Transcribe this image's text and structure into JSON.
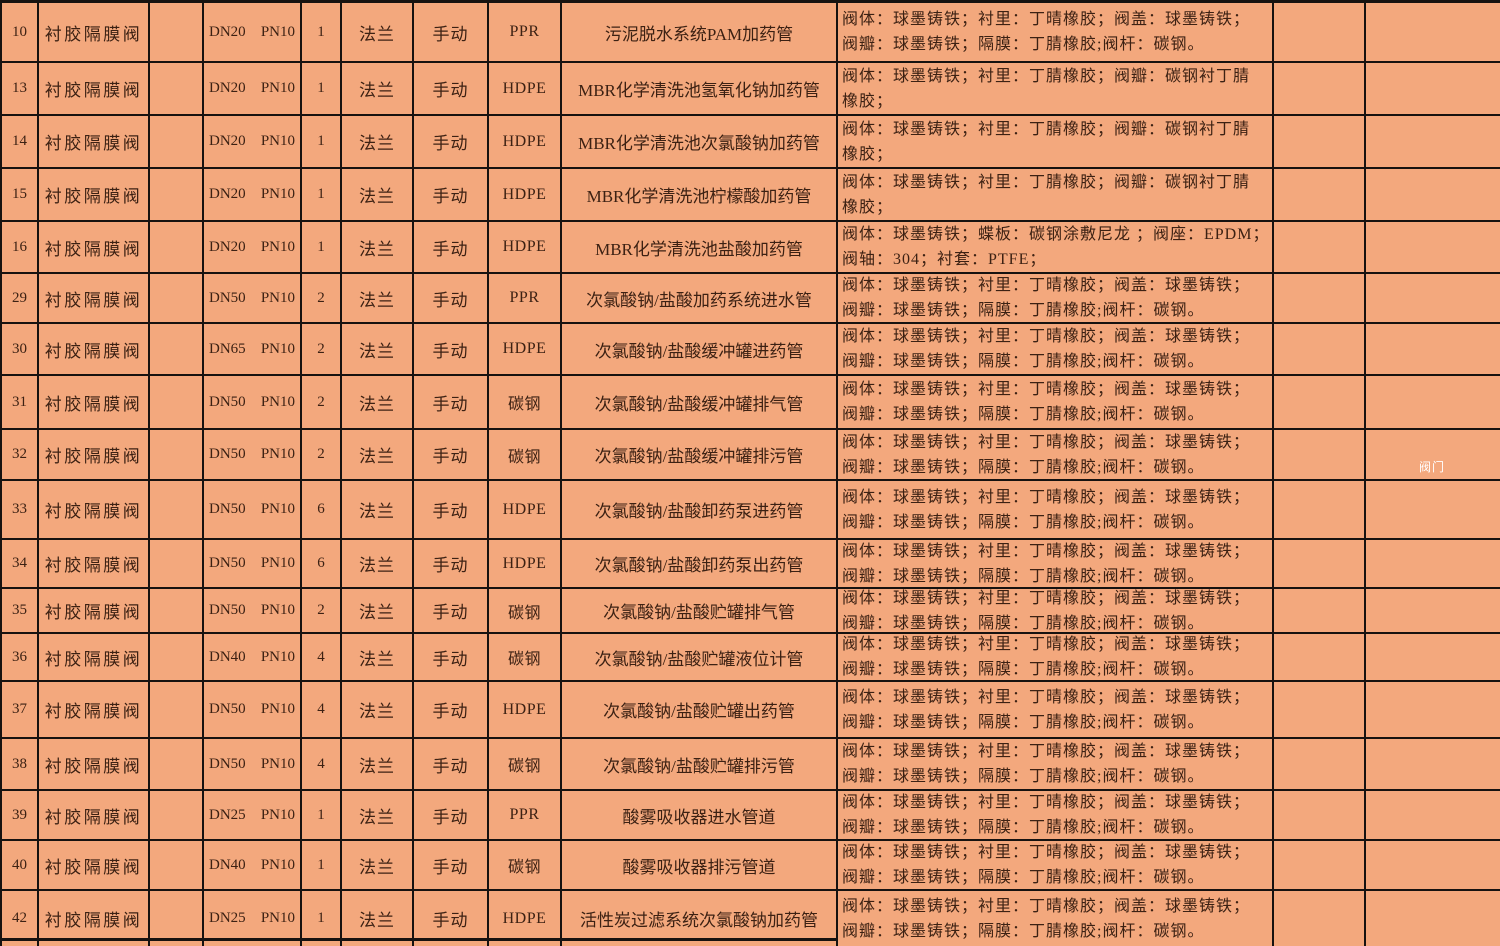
{
  "colors": {
    "cell_fill": "#f3a87d",
    "grid_line": "#161210",
    "text": "#3c2113",
    "watermark_text": "#ffffff"
  },
  "table": {
    "watermark_label": "阀门",
    "rows": [
      {
        "no": "10",
        "name": "衬胶隔膜阀",
        "dn": "DN20",
        "pn": "PN10",
        "qty": "1",
        "connection": "法兰",
        "operation": "手动",
        "material": "PPR",
        "service": "污泥脱水系统PAM加药管",
        "spec_line1": "阀体：球墨铸铁；衬里：丁晴橡胶；阀盖：球墨铸铁；",
        "spec_line2": "阀瓣：球墨铸铁；隔膜：丁腈橡胶;阀杆：碳钢。"
      },
      {
        "no": "13",
        "name": "衬胶隔膜阀",
        "dn": "DN20",
        "pn": "PN10",
        "qty": "1",
        "connection": "法兰",
        "operation": "手动",
        "material": "HDPE",
        "service": "MBR化学清洗池氢氧化钠加药管",
        "spec_line1": "阀体：球墨铸铁；衬里：丁腈橡胶；阀瓣：碳钢衬丁腈",
        "spec_line2": "橡胶；"
      },
      {
        "no": "14",
        "name": "衬胶隔膜阀",
        "dn": "DN20",
        "pn": "PN10",
        "qty": "1",
        "connection": "法兰",
        "operation": "手动",
        "material": "HDPE",
        "service": "MBR化学清洗池次氯酸钠加药管",
        "spec_line1": "阀体：球墨铸铁；衬里：丁腈橡胶；阀瓣：碳钢衬丁腈",
        "spec_line2": "橡胶；"
      },
      {
        "no": "15",
        "name": "衬胶隔膜阀",
        "dn": "DN20",
        "pn": "PN10",
        "qty": "1",
        "connection": "法兰",
        "operation": "手动",
        "material": "HDPE",
        "service": "MBR化学清洗池柠檬酸加药管",
        "spec_line1": "阀体：球墨铸铁；衬里：丁腈橡胶；阀瓣：碳钢衬丁腈",
        "spec_line2": "橡胶；"
      },
      {
        "no": "16",
        "name": "衬胶隔膜阀",
        "dn": "DN20",
        "pn": "PN10",
        "qty": "1",
        "connection": "法兰",
        "operation": "手动",
        "material": "HDPE",
        "service": "MBR化学清洗池盐酸加药管",
        "spec_line1": "阀体：球墨铸铁；蝶板：碳钢涂敷尼龙 ；阀座：EPDM；",
        "spec_line2": "阀轴：304；衬套：PTFE；"
      },
      {
        "no": "29",
        "name": "衬胶隔膜阀",
        "dn": "DN50",
        "pn": "PN10",
        "qty": "2",
        "connection": "法兰",
        "operation": "手动",
        "material": "PPR",
        "service": "次氯酸钠/盐酸加药系统进水管",
        "spec_line1": "阀体：球墨铸铁；衬里：丁晴橡胶；阀盖：球墨铸铁；",
        "spec_line2": "阀瓣：球墨铸铁；隔膜：丁腈橡胶;阀杆：碳钢。"
      },
      {
        "no": "30",
        "name": "衬胶隔膜阀",
        "dn": "DN65",
        "pn": "PN10",
        "qty": "2",
        "connection": "法兰",
        "operation": "手动",
        "material": "HDPE",
        "service": "次氯酸钠/盐酸缓冲罐进药管",
        "spec_line1": "阀体：球墨铸铁；衬里：丁晴橡胶；阀盖：球墨铸铁；",
        "spec_line2": "阀瓣：球墨铸铁；隔膜：丁腈橡胶;阀杆：碳钢。"
      },
      {
        "no": "31",
        "name": "衬胶隔膜阀",
        "dn": "DN50",
        "pn": "PN10",
        "qty": "2",
        "connection": "法兰",
        "operation": "手动",
        "material": "碳钢",
        "service": "次氯酸钠/盐酸缓冲罐排气管",
        "spec_line1": "阀体：球墨铸铁；衬里：丁晴橡胶；阀盖：球墨铸铁；",
        "spec_line2": "阀瓣：球墨铸铁；隔膜：丁腈橡胶;阀杆：碳钢。"
      },
      {
        "no": "32",
        "name": "衬胶隔膜阀",
        "dn": "DN50",
        "pn": "PN10",
        "qty": "2",
        "connection": "法兰",
        "operation": "手动",
        "material": "碳钢",
        "service": "次氯酸钠/盐酸缓冲罐排污管",
        "spec_line1": "阀体：球墨铸铁；衬里：丁晴橡胶；阀盖：球墨铸铁；",
        "spec_line2": "阀瓣：球墨铸铁；隔膜：丁腈橡胶;阀杆：碳钢。"
      },
      {
        "no": "33",
        "name": "衬胶隔膜阀",
        "dn": "DN50",
        "pn": "PN10",
        "qty": "6",
        "connection": "法兰",
        "operation": "手动",
        "material": "HDPE",
        "service": "次氯酸钠/盐酸卸药泵进药管",
        "spec_line1": "阀体：球墨铸铁；衬里：丁晴橡胶；阀盖：球墨铸铁；",
        "spec_line2": "阀瓣：球墨铸铁；隔膜：丁腈橡胶;阀杆：碳钢。"
      },
      {
        "no": "34",
        "name": "衬胶隔膜阀",
        "dn": "DN50",
        "pn": "PN10",
        "qty": "6",
        "connection": "法兰",
        "operation": "手动",
        "material": "HDPE",
        "service": "次氯酸钠/盐酸卸药泵出药管",
        "spec_line1": "阀体：球墨铸铁；衬里：丁晴橡胶；阀盖：球墨铸铁；",
        "spec_line2": "阀瓣：球墨铸铁；隔膜：丁腈橡胶;阀杆：碳钢。"
      },
      {
        "no": "35",
        "name": "衬胶隔膜阀",
        "dn": "DN50",
        "pn": "PN10",
        "qty": "2",
        "connection": "法兰",
        "operation": "手动",
        "material": "碳钢",
        "service": "次氯酸钠/盐酸贮罐排气管",
        "spec_line1": "阀体：球墨铸铁；衬里：丁晴橡胶；阀盖：球墨铸铁；",
        "spec_line2": "阀瓣：球墨铸铁；隔膜：丁腈橡胶;阀杆：碳钢。"
      },
      {
        "no": "36",
        "name": "衬胶隔膜阀",
        "dn": "DN40",
        "pn": "PN10",
        "qty": "4",
        "connection": "法兰",
        "operation": "手动",
        "material": "碳钢",
        "service": "次氯酸钠/盐酸贮罐液位计管",
        "spec_line1": "阀体：球墨铸铁；衬里：丁晴橡胶；阀盖：球墨铸铁；",
        "spec_line2": "阀瓣：球墨铸铁；隔膜：丁腈橡胶;阀杆：碳钢。"
      },
      {
        "no": "37",
        "name": "衬胶隔膜阀",
        "dn": "DN50",
        "pn": "PN10",
        "qty": "4",
        "connection": "法兰",
        "operation": "手动",
        "material": "HDPE",
        "service": "次氯酸钠/盐酸贮罐出药管",
        "spec_line1": "阀体：球墨铸铁；衬里：丁晴橡胶；阀盖：球墨铸铁；",
        "spec_line2": "阀瓣：球墨铸铁；隔膜：丁腈橡胶;阀杆：碳钢。"
      },
      {
        "no": "38",
        "name": "衬胶隔膜阀",
        "dn": "DN50",
        "pn": "PN10",
        "qty": "4",
        "connection": "法兰",
        "operation": "手动",
        "material": "碳钢",
        "service": "次氯酸钠/盐酸贮罐排污管",
        "spec_line1": "阀体：球墨铸铁；衬里：丁晴橡胶；阀盖：球墨铸铁；",
        "spec_line2": "阀瓣：球墨铸铁；隔膜：丁腈橡胶;阀杆：碳钢。"
      },
      {
        "no": "39",
        "name": "衬胶隔膜阀",
        "dn": "DN25",
        "pn": "PN10",
        "qty": "1",
        "connection": "法兰",
        "operation": "手动",
        "material": "PPR",
        "service": "酸雾吸收器进水管道",
        "spec_line1": "阀体：球墨铸铁；衬里：丁晴橡胶；阀盖：球墨铸铁；",
        "spec_line2": "阀瓣：球墨铸铁；隔膜：丁腈橡胶;阀杆：碳钢。"
      },
      {
        "no": "40",
        "name": "衬胶隔膜阀",
        "dn": "DN40",
        "pn": "PN10",
        "qty": "1",
        "connection": "法兰",
        "operation": "手动",
        "material": "碳钢",
        "service": "酸雾吸收器排污管道",
        "spec_line1": "阀体：球墨铸铁；衬里：丁晴橡胶；阀盖：球墨铸铁；",
        "spec_line2": "阀瓣：球墨铸铁；隔膜：丁腈橡胶;阀杆：碳钢。"
      },
      {
        "no": "42",
        "name": "衬胶隔膜阀",
        "dn": "DN25",
        "pn": "PN10",
        "qty": "1",
        "connection": "法兰",
        "operation": "手动",
        "material": "HDPE",
        "service": "活性炭过滤系统次氯酸钠加药管",
        "spec_line1": "阀体：球墨铸铁；衬里：丁晴橡胶；阀盖：球墨铸铁；",
        "spec_line2": "阀瓣：球墨铸铁；隔膜：丁腈橡胶;阀杆：碳钢。"
      }
    ]
  }
}
